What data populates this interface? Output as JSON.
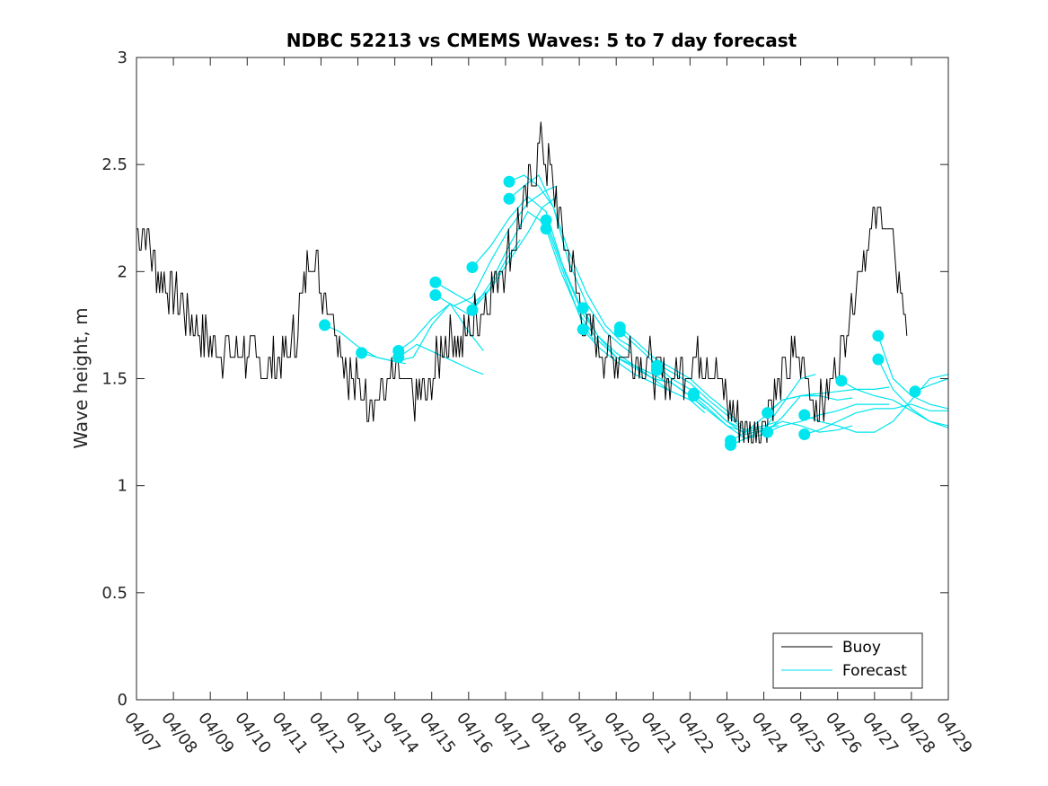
{
  "chart_data": {
    "type": "line",
    "title": "NDBC 52213 vs CMEMS Waves: 5 to 7 day forecast",
    "xlabel": "",
    "ylabel": "Wave height, m",
    "xlim": [
      0,
      22
    ],
    "ylim": [
      0,
      3
    ],
    "x_tick_labels": [
      "04/07",
      "04/08",
      "04/09",
      "04/10",
      "04/11",
      "04/12",
      "04/13",
      "04/14",
      "04/15",
      "04/16",
      "04/17",
      "04/18",
      "04/19",
      "04/20",
      "04/21",
      "04/22",
      "04/23",
      "04/24",
      "04/25",
      "04/26",
      "04/27",
      "04/28",
      "04/29"
    ],
    "y_ticks": [
      0,
      0.5,
      1,
      1.5,
      2,
      2.5,
      3
    ],
    "y_tick_labels": [
      "0",
      "0.5",
      "1",
      "1.5",
      "2",
      "2.5",
      "3"
    ],
    "legend": {
      "position": "bottom-right",
      "entries": [
        "Buoy",
        "Forecast"
      ]
    },
    "colors": {
      "buoy": "#000000",
      "forecast": "#00e5ee"
    },
    "buoy": {
      "name": "Buoy",
      "x": [
        0,
        0.3,
        0.6,
        0.9,
        1.2,
        1.5,
        1.8,
        2.1,
        2.5,
        3.0,
        3.5,
        4.0,
        4.3,
        4.5,
        4.7,
        5.0,
        5.3,
        5.6,
        6.0,
        6.4,
        6.7,
        7.0,
        7.3,
        7.6,
        7.9,
        8.2,
        8.5,
        8.8,
        9.1,
        9.4,
        9.7,
        10.0,
        10.3,
        10.6,
        10.8,
        11.0,
        11.3,
        11.6,
        11.9,
        12.2,
        12.5,
        12.8,
        13.1,
        13.4,
        13.7,
        14.0,
        14.3,
        14.6,
        14.9,
        15.2,
        15.5,
        15.8,
        16.1,
        16.4,
        16.7,
        17.0,
        17.3,
        17.6,
        17.9,
        18.2,
        18.5,
        18.8,
        19.1,
        19.4,
        19.7,
        20.0,
        20.3,
        20.6,
        20.9
      ],
      "values": [
        2.2,
        2.15,
        2.0,
        1.9,
        1.85,
        1.75,
        1.7,
        1.65,
        1.62,
        1.6,
        1.55,
        1.58,
        1.7,
        1.9,
        2.1,
        1.95,
        1.8,
        1.6,
        1.45,
        1.42,
        1.45,
        1.5,
        1.45,
        1.42,
        1.45,
        1.6,
        1.7,
        1.65,
        1.75,
        1.85,
        1.95,
        2.05,
        2.2,
        2.35,
        2.5,
        2.6,
        2.4,
        2.15,
        1.95,
        1.75,
        1.65,
        1.62,
        1.6,
        1.62,
        1.58,
        1.55,
        1.5,
        1.52,
        1.55,
        1.62,
        1.58,
        1.48,
        1.35,
        1.3,
        1.25,
        1.3,
        1.45,
        1.55,
        1.6,
        1.5,
        1.35,
        1.45,
        1.65,
        1.85,
        2.1,
        2.25,
        2.25,
        2.0,
        1.75
      ],
      "noise_amplitude": 0.1
    },
    "forecast_series": [
      {
        "name": "Forecast",
        "x": [
          5.1,
          5.5,
          6.0,
          6.5,
          7.0,
          7.3
        ],
        "values": [
          1.75,
          1.72,
          1.65,
          1.6,
          1.58,
          1.57
        ]
      },
      {
        "name": "Forecast",
        "x": [
          6.1,
          6.5,
          7.0,
          7.5,
          8.0,
          8.5,
          9.0,
          9.4
        ],
        "values": [
          1.62,
          1.6,
          1.58,
          1.6,
          1.75,
          1.85,
          1.72,
          1.63
        ]
      },
      {
        "name": "Forecast",
        "x": [
          7.1,
          7.5,
          8.0,
          8.5,
          9.0,
          9.5,
          10.0,
          10.4
        ],
        "values": [
          1.63,
          1.68,
          1.78,
          1.85,
          1.8,
          1.9,
          2.05,
          2.15
        ]
      },
      {
        "name": "Forecast",
        "x": [
          7.1,
          7.6,
          8.1,
          8.6,
          9.1,
          9.4
        ],
        "values": [
          1.6,
          1.66,
          1.62,
          1.58,
          1.54,
          1.52
        ]
      },
      {
        "name": "Forecast",
        "x": [
          8.1,
          8.6,
          9.1,
          9.6,
          10.1,
          10.6,
          11.0,
          11.4
        ],
        "values": [
          1.95,
          1.9,
          1.85,
          1.92,
          2.05,
          2.18,
          2.3,
          2.35
        ]
      },
      {
        "name": "Forecast",
        "x": [
          8.1,
          8.6,
          9.1,
          9.6,
          10.1,
          10.6,
          11.1,
          11.4
        ],
        "values": [
          1.89,
          1.84,
          1.88,
          2.05,
          2.2,
          2.32,
          2.38,
          2.4
        ]
      },
      {
        "name": "Forecast",
        "x": [
          9.1,
          9.6,
          10.1,
          10.6,
          11.1,
          11.6,
          12.1,
          12.4
        ],
        "values": [
          2.02,
          2.12,
          2.25,
          2.35,
          2.28,
          2.0,
          1.8,
          1.73
        ]
      },
      {
        "name": "Forecast",
        "x": [
          9.1,
          9.6,
          10.1,
          10.6,
          11.1,
          11.6,
          12.1,
          12.4
        ],
        "values": [
          1.82,
          1.95,
          2.12,
          2.28,
          2.22,
          1.98,
          1.75,
          1.68
        ]
      },
      {
        "name": "Forecast",
        "x": [
          10.1,
          10.5,
          10.9,
          11.3,
          11.7,
          12.2,
          12.7,
          13.1,
          13.4
        ],
        "values": [
          2.42,
          2.45,
          2.4,
          2.3,
          2.1,
          1.9,
          1.75,
          1.68,
          1.65
        ]
      },
      {
        "name": "Forecast",
        "x": [
          10.1,
          10.5,
          10.9,
          11.3,
          11.7,
          12.2,
          12.7,
          13.1,
          13.4
        ],
        "values": [
          2.34,
          2.4,
          2.45,
          2.3,
          2.05,
          1.85,
          1.72,
          1.66,
          1.62
        ]
      },
      {
        "name": "Forecast",
        "x": [
          11.1,
          11.5,
          12.0,
          12.5,
          13.0,
          13.5,
          14.0,
          14.4
        ],
        "values": [
          2.24,
          2.05,
          1.85,
          1.7,
          1.62,
          1.56,
          1.5,
          1.45
        ]
      },
      {
        "name": "Forecast",
        "x": [
          11.1,
          11.5,
          12.0,
          12.5,
          13.0,
          13.5,
          14.0,
          14.4
        ],
        "values": [
          2.2,
          2.0,
          1.8,
          1.68,
          1.6,
          1.56,
          1.52,
          1.48
        ]
      },
      {
        "name": "Forecast",
        "x": [
          12.1,
          12.5,
          13.0,
          13.5,
          14.0,
          14.5,
          15.0,
          15.4
        ],
        "values": [
          1.83,
          1.7,
          1.6,
          1.55,
          1.5,
          1.48,
          1.42,
          1.36
        ]
      },
      {
        "name": "Forecast",
        "x": [
          12.1,
          12.5,
          13.0,
          13.5,
          14.0,
          14.5,
          15.0,
          15.4
        ],
        "values": [
          1.73,
          1.65,
          1.58,
          1.52,
          1.48,
          1.44,
          1.4,
          1.34
        ]
      },
      {
        "name": "Forecast",
        "x": [
          13.1,
          13.5,
          14.0,
          14.5,
          15.0,
          15.5,
          16.0,
          16.4
        ],
        "values": [
          1.74,
          1.68,
          1.6,
          1.55,
          1.5,
          1.42,
          1.35,
          1.28
        ]
      },
      {
        "name": "Forecast",
        "x": [
          13.1,
          13.5,
          14.0,
          14.5,
          15.0,
          15.5,
          16.0,
          16.4
        ],
        "values": [
          1.72,
          1.66,
          1.58,
          1.53,
          1.48,
          1.4,
          1.33,
          1.27
        ]
      },
      {
        "name": "Forecast",
        "x": [
          14.1,
          14.5,
          15.0,
          15.5,
          16.0,
          16.5,
          17.0,
          17.4
        ],
        "values": [
          1.56,
          1.5,
          1.45,
          1.38,
          1.3,
          1.26,
          1.28,
          1.3
        ]
      },
      {
        "name": "Forecast",
        "x": [
          14.1,
          14.5,
          15.0,
          15.5,
          16.0,
          16.5,
          17.0,
          17.4
        ],
        "values": [
          1.54,
          1.48,
          1.42,
          1.35,
          1.28,
          1.25,
          1.27,
          1.28
        ]
      },
      {
        "name": "Forecast",
        "x": [
          15.1,
          15.5,
          16.0,
          16.5,
          17.0,
          17.5,
          18.0,
          18.4
        ],
        "values": [
          1.43,
          1.38,
          1.3,
          1.24,
          1.26,
          1.38,
          1.5,
          1.52
        ]
      },
      {
        "name": "Forecast",
        "x": [
          15.1,
          15.5,
          16.0,
          16.5,
          17.0,
          17.5,
          18.0,
          18.4
        ],
        "values": [
          1.42,
          1.36,
          1.28,
          1.22,
          1.24,
          1.32,
          1.42,
          1.43
        ]
      },
      {
        "name": "Forecast",
        "x": [
          16.1,
          16.5,
          17.0,
          17.5,
          18.0,
          18.5,
          19.0,
          19.4
        ],
        "values": [
          1.21,
          1.25,
          1.32,
          1.4,
          1.42,
          1.42,
          1.4,
          1.41
        ]
      },
      {
        "name": "Forecast",
        "x": [
          16.1,
          16.5,
          17.0,
          17.5,
          18.0,
          18.5,
          19.0,
          19.4
        ],
        "values": [
          1.19,
          1.22,
          1.26,
          1.3,
          1.28,
          1.25,
          1.26,
          1.28
        ]
      },
      {
        "name": "Forecast",
        "x": [
          17.1,
          17.5,
          18.0,
          18.5,
          19.0,
          19.5,
          20.0,
          20.4
        ],
        "values": [
          1.34,
          1.4,
          1.42,
          1.43,
          1.44,
          1.45,
          1.45,
          1.46
        ]
      },
      {
        "name": "Forecast",
        "x": [
          17.1,
          17.5,
          18.0,
          18.5,
          19.0,
          19.5,
          20.0,
          20.4
        ],
        "values": [
          1.25,
          1.28,
          1.3,
          1.33,
          1.35,
          1.38,
          1.38,
          1.38
        ]
      },
      {
        "name": "Forecast",
        "x": [
          18.1,
          18.5,
          19.0,
          19.5,
          20.0,
          20.5,
          21.0,
          21.5,
          22.0
        ],
        "values": [
          1.33,
          1.3,
          1.28,
          1.25,
          1.25,
          1.3,
          1.4,
          1.5,
          1.52
        ]
      },
      {
        "name": "Forecast",
        "x": [
          18.1,
          18.5,
          19.0,
          19.5,
          20.0,
          20.5,
          21.0,
          21.5,
          22.0
        ],
        "values": [
          1.24,
          1.26,
          1.3,
          1.34,
          1.36,
          1.36,
          1.38,
          1.35,
          1.35
        ]
      },
      {
        "name": "Forecast",
        "x": [
          19.1,
          19.5,
          20.0,
          20.5,
          21.0,
          21.5,
          22.0
        ],
        "values": [
          1.49,
          1.45,
          1.42,
          1.4,
          1.35,
          1.3,
          1.28
        ]
      },
      {
        "name": "Forecast",
        "x": [
          20.1,
          20.5,
          21.0,
          21.5,
          22.0
        ],
        "values": [
          1.7,
          1.5,
          1.42,
          1.38,
          1.36
        ]
      },
      {
        "name": "Forecast",
        "x": [
          20.1,
          20.5,
          21.0,
          21.5,
          22.0
        ],
        "values": [
          1.59,
          1.45,
          1.36,
          1.3,
          1.27
        ]
      },
      {
        "name": "Forecast",
        "x": [
          21.1,
          21.5,
          22.0
        ],
        "values": [
          1.44,
          1.47,
          1.5
        ]
      }
    ]
  }
}
